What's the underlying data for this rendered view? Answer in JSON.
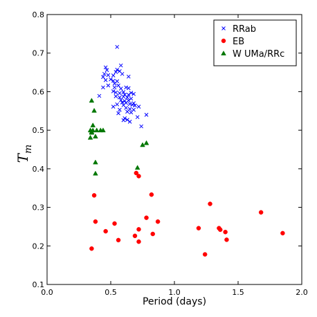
{
  "chart_data": {
    "type": "scatter",
    "xlabel": "Period (days)",
    "ylabel": "T",
    "ylabel_sub": "m",
    "xlim": [
      0.0,
      2.0
    ],
    "ylim": [
      0.1,
      0.8
    ],
    "xticks": [
      "0.0",
      "0.5",
      "1.0",
      "1.5",
      "2.0"
    ],
    "yticks": [
      "0.1",
      "0.2",
      "0.3",
      "0.4",
      "0.5",
      "0.6",
      "0.7",
      "0.8"
    ],
    "grid": false,
    "legend_position": "top-right",
    "series": [
      {
        "name": "RRab",
        "marker": "x",
        "color": "#0000ff",
        "points": [
          [
            0.55,
            0.716
          ],
          [
            0.58,
            0.668
          ],
          [
            0.46,
            0.663
          ],
          [
            0.47,
            0.656
          ],
          [
            0.55,
            0.657
          ],
          [
            0.54,
            0.651
          ],
          [
            0.57,
            0.653
          ],
          [
            0.45,
            0.646
          ],
          [
            0.48,
            0.643
          ],
          [
            0.44,
            0.638
          ],
          [
            0.52,
            0.642
          ],
          [
            0.59,
            0.646
          ],
          [
            0.64,
            0.639
          ],
          [
            0.46,
            0.63
          ],
          [
            0.5,
            0.632
          ],
          [
            0.52,
            0.628
          ],
          [
            0.55,
            0.627
          ],
          [
            0.53,
            0.621
          ],
          [
            0.44,
            0.611
          ],
          [
            0.48,
            0.616
          ],
          [
            0.56,
            0.616
          ],
          [
            0.53,
            0.611
          ],
          [
            0.62,
            0.611
          ],
          [
            0.64,
            0.609
          ],
          [
            0.58,
            0.608
          ],
          [
            0.52,
            0.601
          ],
          [
            0.54,
            0.598
          ],
          [
            0.57,
            0.596
          ],
          [
            0.6,
            0.599
          ],
          [
            0.66,
            0.597
          ],
          [
            0.61,
            0.592
          ],
          [
            0.64,
            0.592
          ],
          [
            0.68,
            0.594
          ],
          [
            0.54,
            0.588
          ],
          [
            0.57,
            0.585
          ],
          [
            0.6,
            0.587
          ],
          [
            0.63,
            0.585
          ],
          [
            0.66,
            0.582
          ],
          [
            0.41,
            0.589
          ],
          [
            0.58,
            0.578
          ],
          [
            0.61,
            0.576
          ],
          [
            0.64,
            0.577
          ],
          [
            0.59,
            0.572
          ],
          [
            0.62,
            0.571
          ],
          [
            0.65,
            0.568
          ],
          [
            0.67,
            0.566
          ],
          [
            0.68,
            0.57
          ],
          [
            0.69,
            0.564
          ],
          [
            0.6,
            0.565
          ],
          [
            0.55,
            0.567
          ],
          [
            0.72,
            0.561
          ],
          [
            0.52,
            0.561
          ],
          [
            0.62,
            0.558
          ],
          [
            0.65,
            0.555
          ],
          [
            0.68,
            0.553
          ],
          [
            0.57,
            0.553
          ],
          [
            0.63,
            0.548
          ],
          [
            0.66,
            0.546
          ],
          [
            0.56,
            0.544
          ],
          [
            0.78,
            0.54
          ],
          [
            0.71,
            0.534
          ],
          [
            0.61,
            0.531
          ],
          [
            0.63,
            0.527
          ],
          [
            0.65,
            0.522
          ],
          [
            0.6,
            0.526
          ],
          [
            0.74,
            0.51
          ]
        ]
      },
      {
        "name": "EB",
        "marker": "o",
        "color": "#ff0000",
        "points": [
          [
            0.7,
            0.389
          ],
          [
            0.72,
            0.381
          ],
          [
            0.82,
            0.333
          ],
          [
            0.37,
            0.331
          ],
          [
            1.28,
            0.309
          ],
          [
            1.68,
            0.287
          ],
          [
            0.78,
            0.273
          ],
          [
            0.38,
            0.263
          ],
          [
            0.87,
            0.263
          ],
          [
            0.53,
            0.258
          ],
          [
            1.19,
            0.246
          ],
          [
            1.35,
            0.246
          ],
          [
            1.36,
            0.242
          ],
          [
            0.46,
            0.238
          ],
          [
            0.72,
            0.243
          ],
          [
            1.4,
            0.236
          ],
          [
            1.85,
            0.233
          ],
          [
            0.83,
            0.231
          ],
          [
            0.69,
            0.226
          ],
          [
            0.56,
            0.215
          ],
          [
            0.72,
            0.211
          ],
          [
            1.41,
            0.216
          ],
          [
            0.35,
            0.193
          ],
          [
            1.24,
            0.178
          ]
        ]
      },
      {
        "name": "W UMa/RRc",
        "marker": "^",
        "color": "#007700",
        "points": [
          [
            0.35,
            0.577
          ],
          [
            0.37,
            0.551
          ],
          [
            0.36,
            0.513
          ],
          [
            0.39,
            0.5
          ],
          [
            0.42,
            0.5
          ],
          [
            0.44,
            0.5
          ],
          [
            0.36,
            0.5
          ],
          [
            0.35,
            0.496
          ],
          [
            0.34,
            0.5
          ],
          [
            0.35,
            0.494
          ],
          [
            0.38,
            0.484
          ],
          [
            0.34,
            0.481
          ],
          [
            0.38,
            0.417
          ],
          [
            0.38,
            0.388
          ],
          [
            0.78,
            0.467
          ],
          [
            0.75,
            0.462
          ],
          [
            0.71,
            0.403
          ]
        ]
      }
    ]
  }
}
